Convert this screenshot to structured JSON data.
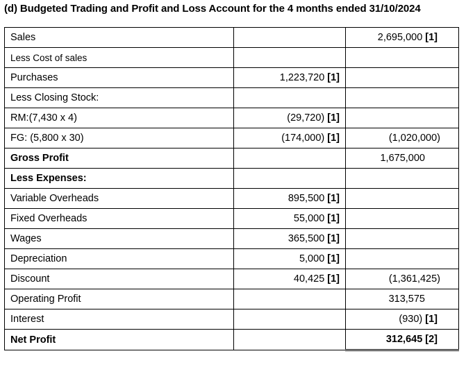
{
  "title": "(d) Budgeted Trading and Profit and Loss Account for the 4 months ended 31/10/2024",
  "rows": [
    {
      "label": "Sales",
      "bold": false,
      "col2": "",
      "col2_mark": "",
      "col3": "2,695,000",
      "col3_mark": "[1]"
    },
    {
      "label": "Less Cost of sales",
      "bold": false,
      "col2": "",
      "col2_mark": "",
      "col3": "",
      "col3_mark": ""
    },
    {
      "label": "Purchases",
      "bold": false,
      "col2": "1,223,720",
      "col2_mark": "[1]",
      "col3": "",
      "col3_mark": ""
    },
    {
      "label": "Less Closing Stock:",
      "bold": false,
      "col2": "",
      "col2_mark": "",
      "col3": "",
      "col3_mark": ""
    },
    {
      "label": "RM:(7,430 x 4)",
      "bold": false,
      "col2": "(29,720)",
      "col2_mark": "[1]",
      "col3": "",
      "col3_mark": ""
    },
    {
      "label": "FG: (5,800 x 30)",
      "bold": false,
      "col2": "(174,000)",
      "col2_mark": "[1]",
      "col3": "(1,020,000)",
      "col3_mark": ""
    },
    {
      "label": "Gross Profit",
      "bold": true,
      "col2": "",
      "col2_mark": "",
      "col3": "1,675,000",
      "col3_mark": ""
    },
    {
      "label": "Less Expenses:",
      "bold": true,
      "col2": "",
      "col2_mark": "",
      "col3": "",
      "col3_mark": ""
    },
    {
      "label": "Variable Overheads",
      "bold": false,
      "col2": "895,500",
      "col2_mark": "[1]",
      "col3": "",
      "col3_mark": ""
    },
    {
      "label": "Fixed Overheads",
      "bold": false,
      "col2": "55,000",
      "col2_mark": "[1]",
      "col3": "",
      "col3_mark": ""
    },
    {
      "label": "Wages",
      "bold": false,
      "col2": "365,500",
      "col2_mark": "[1]",
      "col3": "",
      "col3_mark": ""
    },
    {
      "label": "Depreciation",
      "bold": false,
      "col2": "5,000",
      "col2_mark": "[1]",
      "col3": "",
      "col3_mark": ""
    },
    {
      "label": "Discount",
      "bold": false,
      "col2": "40,425",
      "col2_mark": "[1]",
      "col3": "(1,361,425)",
      "col3_mark": ""
    },
    {
      "label": "Operating Profit",
      "bold": false,
      "col2": "",
      "col2_mark": "",
      "col3": "313,575",
      "col3_mark": ""
    },
    {
      "label": "Interest",
      "bold": false,
      "col2": "",
      "col2_mark": "",
      "col3": "(930)",
      "col3_mark": "[1]"
    },
    {
      "label": "Net Profit",
      "bold": true,
      "col2": "",
      "col2_mark": "",
      "col3": "312,645",
      "col3_mark": "[2]"
    }
  ]
}
